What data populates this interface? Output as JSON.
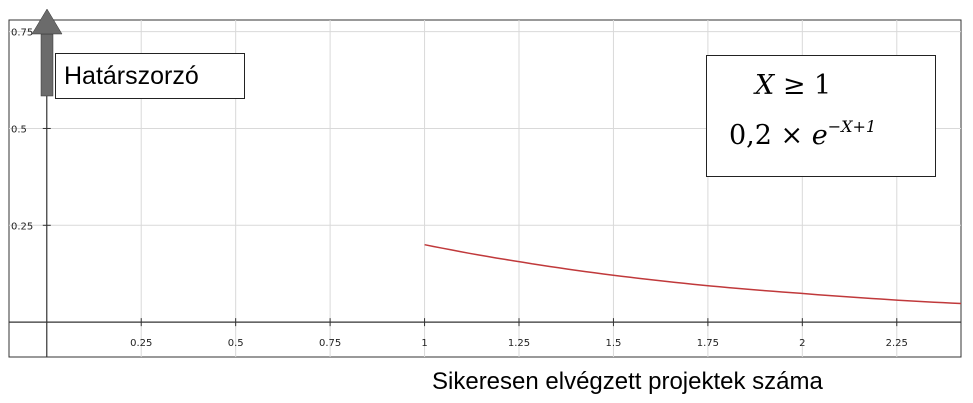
{
  "chart_data": {
    "type": "line",
    "title": "",
    "xlabel": "Sikeresen elvégzett projektek száma",
    "ylabel": "Határszorzó",
    "xlim": [
      -0.1,
      2.42
    ],
    "ylim": [
      -0.09,
      0.78
    ],
    "x_ticks": [
      "0.25",
      "0.5",
      "0.75",
      "1",
      "1.25",
      "1.5",
      "1.75",
      "2",
      "2.25"
    ],
    "y_ticks": [
      "0.25",
      "0.5",
      "0.75"
    ],
    "grid": true,
    "series": [
      {
        "x": [
          1,
          1.25,
          1.5,
          1.75,
          2,
          2.25,
          2.42
        ],
        "y": [
          0.2,
          0.156,
          0.121,
          0.094,
          0.074,
          0.057,
          0.048
        ],
        "color": "#c0393b"
      }
    ],
    "annotation": {
      "line1_var": "X",
      "line1_rest": " ≥ 1",
      "line2_base": "0,2 × ",
      "line2_e": "e",
      "line2_exp": "−X+1"
    }
  },
  "colors": {
    "curve": "#c0393b",
    "grid": "#d9d9d9",
    "axis": "#333333",
    "arrow": "#6b6b6b"
  }
}
